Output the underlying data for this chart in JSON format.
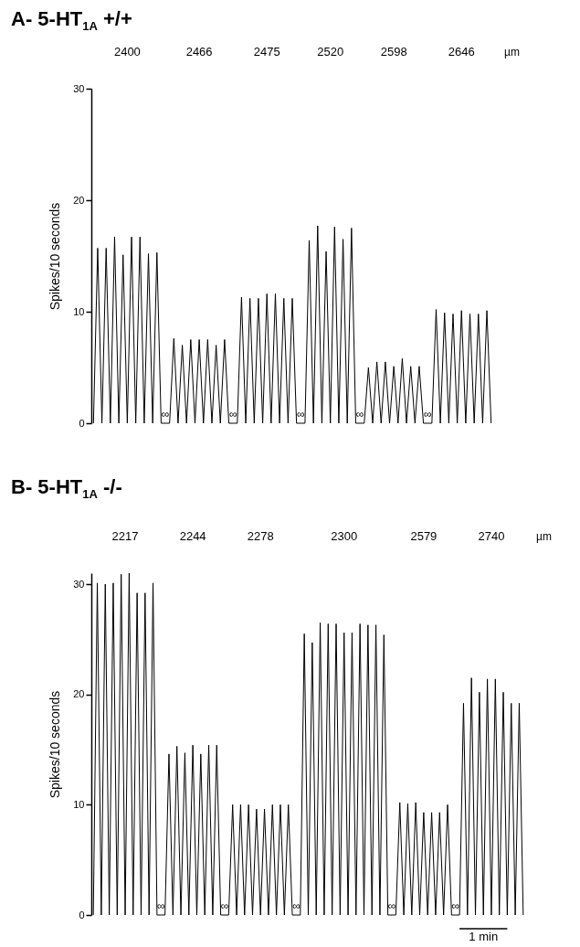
{
  "chart_data": [
    {
      "type": "line",
      "title": "A- 5-HT$_{1A}$ +/+",
      "ylabel": "Spikes/10 seconds",
      "ylim": [
        0,
        30
      ],
      "yticks": [
        0,
        10,
        20,
        30
      ],
      "tick_labels": "y",
      "categories": [
        null,
        null,
        null,
        null,
        null,
        null,
        null,
        null,
        null,
        null,
        null,
        null,
        null,
        null,
        null,
        null,
        null,
        null,
        null,
        null,
        null,
        null,
        null,
        null,
        null,
        null,
        null,
        null,
        null,
        null,
        null,
        null,
        null,
        null,
        null,
        null,
        null,
        null,
        null,
        null,
        null,
        null,
        null,
        null,
        null,
        null,
        null,
        null,
        null,
        null,
        null,
        null,
        null,
        null,
        null,
        null,
        null,
        null,
        null,
        null,
        null,
        null,
        null,
        null,
        null,
        null,
        null,
        null,
        null,
        null,
        null,
        null,
        null,
        null,
        null,
        null,
        null,
        null,
        null,
        null,
        null,
        null,
        null,
        null,
        null,
        null,
        null,
        null,
        null,
        null,
        null,
        null,
        null,
        null,
        null
      ],
      "series": [
        {
          "color": "#000000",
          "values": [
            0,
            15.7,
            0,
            15.7,
            0,
            16.7,
            0,
            15.1,
            0,
            16.7,
            0,
            16.7,
            0,
            15.2,
            0,
            15.3,
            0,
            0,
            0,
            7.6,
            0,
            7.0,
            0,
            7.5,
            0,
            7.5,
            0,
            7.5,
            0,
            7.0,
            0,
            7.5,
            0,
            0,
            0,
            11.3,
            0,
            11.2,
            0,
            11.2,
            0,
            11.6,
            0,
            11.6,
            0,
            11.2,
            0,
            11.2,
            0,
            0,
            0,
            16.4,
            0,
            17.7,
            0,
            15.4,
            0,
            17.6,
            0,
            16.5,
            0,
            17.5,
            0,
            0,
            0,
            5.0,
            0,
            5.5,
            0,
            5.5,
            0,
            5.1,
            0,
            5.8,
            0,
            5.1,
            0,
            5.1,
            0,
            0,
            0,
            10.2,
            0,
            9.9,
            0,
            9.8,
            0,
            10.1,
            0,
            9.8,
            0,
            9.8,
            0,
            10.1,
            0
          ]
        }
      ],
      "annotations": [
        "2400",
        "2466",
        "2475",
        "2520",
        "2598",
        "2646",
        "∞",
        "∞",
        "∞",
        "∞",
        "∞",
        "µm"
      ]
    },
    {
      "type": "line",
      "title": "B- 5-HT$_{1A}$ -/-",
      "ylabel": "Spikes/10 seconds",
      "ylim": [
        0,
        31
      ],
      "yticks": [
        0,
        10,
        20,
        30
      ],
      "tick_labels": "y",
      "categories": [
        null,
        null,
        null,
        null,
        null,
        null,
        null,
        null,
        null,
        null,
        null,
        null,
        null,
        null,
        null,
        null,
        null,
        null,
        null,
        null,
        null,
        null,
        null,
        null,
        null,
        null,
        null,
        null,
        null,
        null,
        null,
        null,
        null,
        null,
        null,
        null,
        null,
        null,
        null,
        null,
        null,
        null,
        null,
        null,
        null,
        null,
        null,
        null,
        null,
        null,
        null,
        null,
        null,
        null,
        null,
        null,
        null,
        null,
        null,
        null,
        null,
        null,
        null,
        null,
        null,
        null,
        null,
        null,
        null,
        null,
        null,
        null,
        null,
        null,
        null,
        null,
        null,
        null,
        null,
        null,
        null,
        null,
        null,
        null,
        null,
        null,
        null,
        null,
        null,
        null,
        null,
        null,
        null,
        null,
        null,
        null,
        null,
        null,
        null,
        null,
        null,
        null,
        null,
        null,
        null,
        null,
        null,
        null,
        null
      ],
      "series": [
        {
          "color": "#000000",
          "values": [
            0,
            30.1,
            0,
            30.0,
            0,
            30.1,
            0,
            30.9,
            0,
            31.0,
            0,
            29.2,
            0,
            29.2,
            0,
            30.1,
            0,
            0,
            0,
            14.6,
            0,
            15.3,
            0,
            14.7,
            0,
            15.4,
            0,
            14.6,
            0,
            15.4,
            0,
            15.4,
            0,
            0,
            0,
            10.0,
            0,
            10.0,
            0,
            10.0,
            0,
            9.6,
            0,
            9.6,
            0,
            10.0,
            0,
            10.0,
            0,
            10.0,
            0,
            0,
            0,
            25.5,
            0,
            24.7,
            0,
            26.5,
            0,
            26.4,
            0,
            26.4,
            0,
            25.6,
            0,
            25.6,
            0,
            26.4,
            0,
            26.3,
            0,
            26.3,
            0,
            25.4,
            0,
            0,
            0,
            10.2,
            0,
            10.1,
            0,
            10.2,
            0,
            9.3,
            0,
            9.3,
            0,
            9.3,
            0,
            10.0,
            0,
            0,
            0,
            19.2,
            0,
            21.5,
            0,
            20.2,
            0,
            21.4,
            0,
            21.4,
            0,
            20.2,
            0,
            19.2,
            0,
            19.2,
            0
          ]
        }
      ],
      "annotations": [
        "2217",
        "2244",
        "2278",
        "2300",
        "2579",
        "2740",
        "∞",
        "∞",
        "∞",
        "∞",
        "∞",
        "µm",
        "1 min"
      ]
    }
  ]
}
